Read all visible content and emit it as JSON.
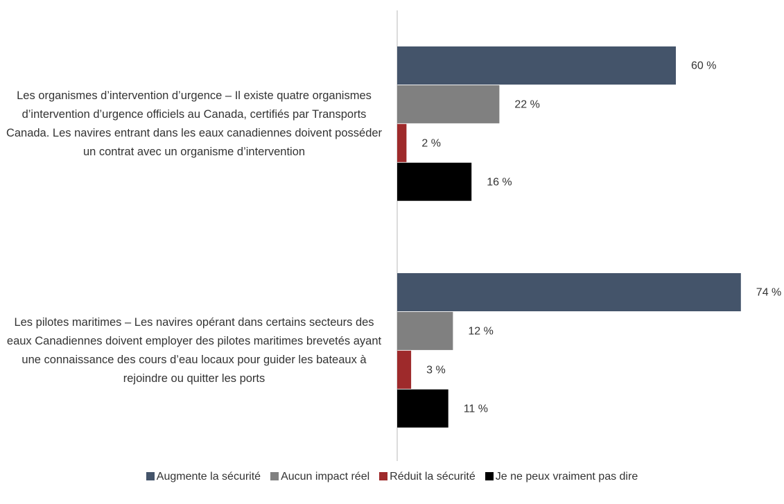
{
  "chart_data": {
    "type": "bar",
    "orientation": "horizontal",
    "categories": [
      "Les organismes d’intervention d’urgence – Il existe quatre organismes d’intervention d’urgence officiels au Canada, certifiés par Transports Canada. Les navires entrant dans les eaux canadiennes doivent posséder un contrat avec un organisme d’intervention",
      "Les pilotes maritimes – Les navires opérant dans certains secteurs des eaux Canadiennes doivent employer des pilotes maritimes brevetés ayant une connaissance des cours d’eau locaux pour guider les bateaux à rejoindre ou quitter les ports"
    ],
    "series": [
      {
        "name": "Augmente la sécurité",
        "color": "#44546a",
        "values": [
          60,
          74
        ],
        "value_labels": [
          "60 %",
          "74 %"
        ]
      },
      {
        "name": "Aucun impact réel",
        "color": "#808080",
        "values": [
          22,
          12
        ],
        "value_labels": [
          "22 %",
          "12 %"
        ]
      },
      {
        "name": "Réduit la sécurité",
        "color": "#9e2a2b",
        "values": [
          2,
          3
        ],
        "value_labels": [
          "2 %",
          "3 %"
        ]
      },
      {
        "name": "Je ne peux vraiment pas dire",
        "color": "#000000",
        "values": [
          16,
          11
        ],
        "value_labels": [
          "16 %",
          "11 %"
        ]
      }
    ],
    "legend": "bottom"
  }
}
